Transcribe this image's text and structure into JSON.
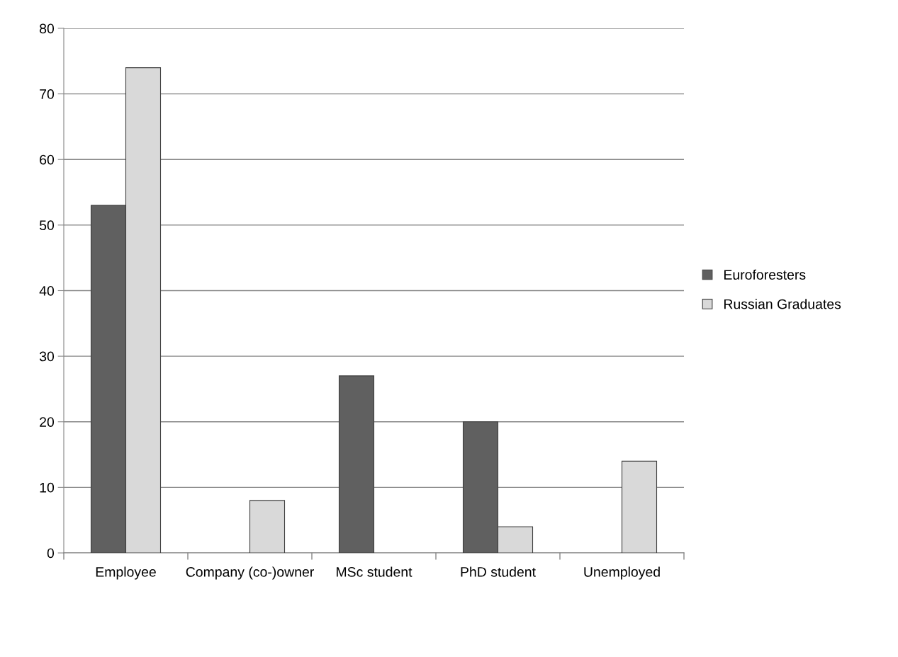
{
  "chart_data": {
    "type": "bar",
    "categories": [
      "Employee",
      "Company (co-)owner",
      "MSc student",
      "PhD student",
      "Unemployed"
    ],
    "series": [
      {
        "name": "Euroforesters",
        "color": "#606060",
        "values": [
          53,
          0,
          27,
          20,
          0
        ]
      },
      {
        "name": "Russian Graduates",
        "color": "#d9d9d9",
        "values": [
          74,
          8,
          0,
          4,
          14
        ]
      }
    ],
    "ylim": [
      0,
      80
    ],
    "yticks": [
      0,
      10,
      20,
      30,
      40,
      50,
      60,
      70,
      80
    ],
    "grid": "y",
    "legend": "right"
  }
}
